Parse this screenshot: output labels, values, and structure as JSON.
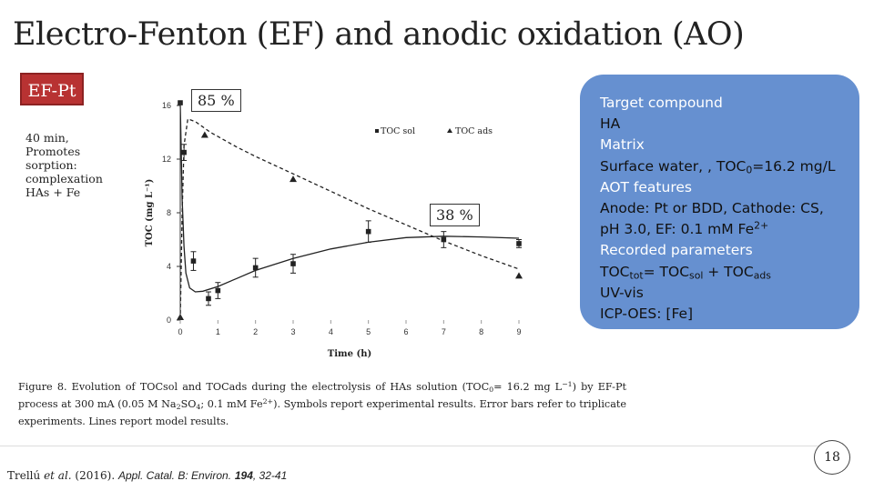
{
  "slide": {
    "title": "Electro-Fenton (EF) and anodic oxidation (AO)",
    "badge": "EF-Pt",
    "side_notes": [
      "40 min,",
      "Promotes",
      "sorption:",
      "complexation",
      "HAs + Fe"
    ],
    "callout_top": "85 %",
    "callout_mid": "38 %",
    "page_number": "18"
  },
  "infobox": {
    "target_header": "Target compound",
    "target_value": "HA",
    "matrix_header": "Matrix",
    "matrix_value_prefix": "Surface water, , TOC",
    "matrix_value_sub": "0",
    "matrix_value_suffix": "=16.2 mg/L",
    "aot_header": "AOT features",
    "aot_line1": "Anode: Pt or BDD, Cathode: CS,",
    "aot_line2_prefix": "pH 3.0, EF:  0.1 mM Fe",
    "aot_line2_sup": "2+",
    "params_header": "Recorded parameters",
    "params_line1": {
      "a": "TOC",
      "a_sub": "tot",
      "b": "= TOC",
      "b_sub": "sol",
      "c": " + TOC",
      "c_sub": "ads"
    },
    "params_line2": "UV-vis",
    "params_line3": "ICP-OES: [Fe]"
  },
  "caption": {
    "p1": "Figure 8. Evolution of TOCsol and TOCads during the electrolysis of HAs solution (TOC",
    "p1_sub": "0",
    "p2": "= 16.2 mg L",
    "p2_sup": "−1",
    "p3": ") by EF-Pt process at 300 mA (0.05 M Na",
    "p3_sub": "2",
    "p4": "SO",
    "p4_sub": "4",
    "p5": "; 0.1 mM Fe",
    "p5_sup": "2+",
    "p6": "). Symbols report experimental results. Error bars refer to triplicate experiments. Lines report model results."
  },
  "reference": {
    "authors": "Trellú ",
    "etal": "et al.",
    "year": " (2016). ",
    "journal": "Appl. Catal. B: Environ.",
    "volume": "194",
    "pages": ", 32-41"
  },
  "chart_data": {
    "type": "scatter",
    "xlabel": "Time (h)",
    "ylabel": "TOC (mg L⁻¹)",
    "xlim": [
      0,
      9
    ],
    "ylim": [
      0,
      16
    ],
    "xticks": [
      0,
      1,
      2,
      3,
      4,
      5,
      6,
      7,
      8,
      9
    ],
    "yticks": [
      0,
      4,
      8,
      12,
      16
    ],
    "legend_position": "top-right",
    "series": [
      {
        "name": "TOC sol",
        "marker": "square",
        "points": [
          [
            0,
            16.2
          ],
          [
            0.1,
            12.5
          ],
          [
            0.35,
            4.4
          ],
          [
            0.75,
            1.6
          ],
          [
            1.0,
            2.2
          ],
          [
            2.0,
            3.9
          ],
          [
            3.0,
            4.2
          ],
          [
            5.0,
            6.6
          ],
          [
            7.0,
            6.0
          ],
          [
            9.0,
            5.7
          ]
        ],
        "errors": [
          0,
          0.6,
          0.7,
          0.5,
          0.6,
          0.7,
          0.7,
          0.8,
          0.6,
          0.3
        ],
        "model_line": [
          [
            0,
            16.2
          ],
          [
            0.05,
            9
          ],
          [
            0.1,
            5.5
          ],
          [
            0.15,
            3.5
          ],
          [
            0.25,
            2.4
          ],
          [
            0.4,
            2.1
          ],
          [
            0.6,
            2.15
          ],
          [
            1,
            2.5
          ],
          [
            1.5,
            3.1
          ],
          [
            2,
            3.7
          ],
          [
            3,
            4.6
          ],
          [
            4,
            5.3
          ],
          [
            5,
            5.8
          ],
          [
            6,
            6.15
          ],
          [
            7,
            6.25
          ],
          [
            8,
            6.2
          ],
          [
            9,
            6.1
          ]
        ]
      },
      {
        "name": "TOC ads",
        "marker": "triangle",
        "points": [
          [
            0,
            0.2
          ],
          [
            0.65,
            13.8
          ],
          [
            3.0,
            10.5
          ],
          [
            9.0,
            3.3
          ]
        ],
        "model_line": [
          [
            0,
            0
          ],
          [
            0.05,
            8
          ],
          [
            0.1,
            13
          ],
          [
            0.2,
            15
          ],
          [
            0.4,
            14.8
          ],
          [
            0.8,
            14.0
          ],
          [
            1.5,
            12.9
          ],
          [
            2,
            12.2
          ],
          [
            3,
            10.9
          ],
          [
            4,
            9.6
          ],
          [
            5,
            8.3
          ],
          [
            6,
            7.1
          ],
          [
            7,
            5.9
          ],
          [
            8,
            4.8
          ],
          [
            9,
            3.8
          ]
        ]
      }
    ]
  }
}
